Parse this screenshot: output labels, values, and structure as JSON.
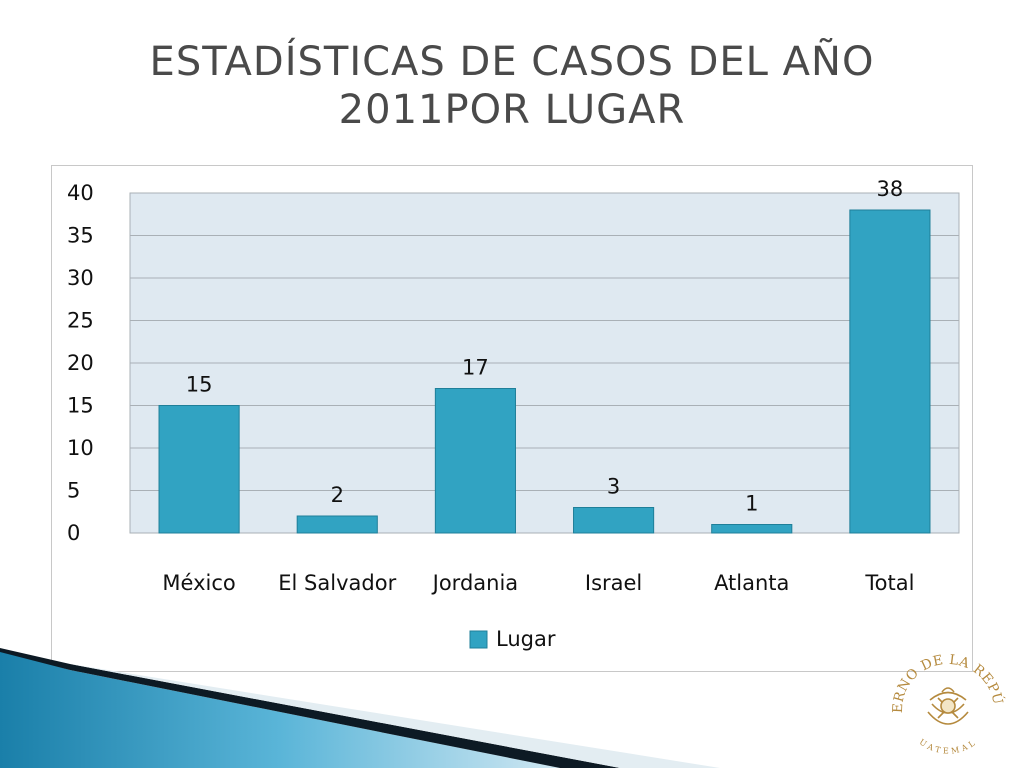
{
  "slide": {
    "title": "ESTADÍSTICAS DE CASOS DEL AÑO\n2011POR LUGAR"
  },
  "colors": {
    "bar": "#31a3c2",
    "bar_edge": "#1f7f99",
    "plot_bg": "#dfe9f1",
    "grid": "#a9b0b6",
    "title": "#4a4a4a"
  },
  "seal": {
    "text_top": "GOBIERNO DE LA REPÚBLICA",
    "text_bottom": "GUATEMALA"
  },
  "chart_data": {
    "type": "bar",
    "categories": [
      "México",
      "El Salvador",
      "Jordania",
      "Israel",
      "Atlanta",
      "Total"
    ],
    "series": [
      {
        "name": "Lugar",
        "values": [
          15,
          2,
          17,
          3,
          1,
          38
        ]
      }
    ],
    "data_labels": [
      "15",
      "2",
      "17",
      "3",
      "1",
      "38"
    ],
    "ylim": [
      0,
      40
    ],
    "yticks": [
      0,
      5,
      10,
      15,
      20,
      25,
      30,
      35,
      40
    ],
    "grid": true,
    "legend": "bottom"
  }
}
